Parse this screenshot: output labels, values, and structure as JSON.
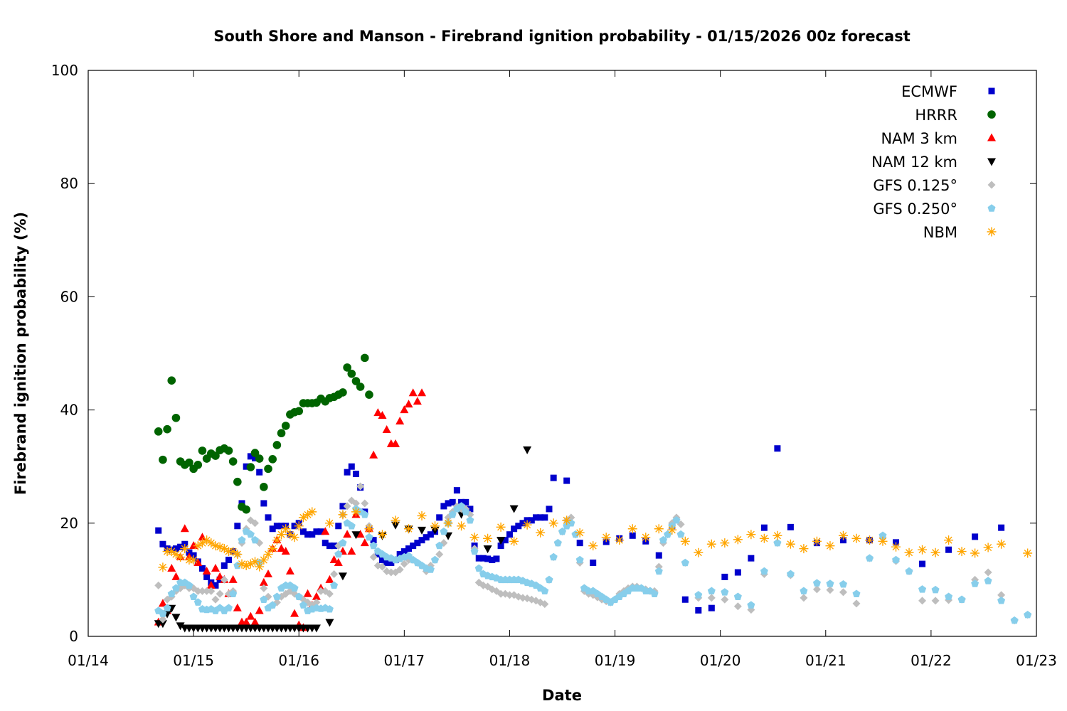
{
  "chart_data": {
    "type": "scatter",
    "title": "South Shore and Manson - Firebrand ignition probability - 01/15/2026 00z forecast",
    "xlabel": "Date",
    "ylabel": "Firebrand ignition probability (%)",
    "x_units": "hours since 01/14 00:00",
    "xlim": [
      0,
      216
    ],
    "ylim": [
      0,
      100
    ],
    "x_ticks": [
      0,
      24,
      48,
      72,
      96,
      120,
      144,
      168,
      192,
      216
    ],
    "x_tick_labels": [
      "01/14",
      "01/15",
      "01/16",
      "01/17",
      "01/18",
      "01/19",
      "01/20",
      "01/21",
      "01/22",
      "01/23"
    ],
    "y_ticks": [
      0,
      20,
      40,
      60,
      80,
      100
    ],
    "y_tick_labels": [
      "0",
      "20",
      "40",
      "60",
      "80",
      "100"
    ],
    "grid": false,
    "legend_position": "top-right",
    "series": [
      {
        "name": "ECMWF",
        "marker": "square",
        "color": "#0000cc",
        "segments": [
          {
            "start": 16,
            "step": 1,
            "values": [
              18.7,
              16.3,
              15.5,
              15.3,
              15.5,
              15.8,
              16.3,
              14.8,
              14.3,
              13.2,
              12,
              10.5,
              9.5,
              9,
              10,
              12.5,
              13.5,
              15,
              19.5,
              23.5,
              30,
              31.8,
              31.5,
              29,
              23.5,
              21,
              19,
              19.5,
              19.5,
              19.5,
              18,
              19.5,
              20,
              18.5,
              18,
              18,
              18.5,
              18.5,
              16.5,
              16,
              16,
              19.5,
              23,
              29,
              30,
              28.7,
              26.3,
              22,
              19,
              17,
              14.5,
              13.5,
              13,
              13,
              13.5,
              14.5,
              15,
              15.5,
              16,
              16.5,
              17,
              17.5,
              18,
              18.5,
              21,
              23,
              23.5,
              23.7,
              25.8,
              23.7,
              23.7,
              22.5,
              16,
              13.8,
              13.8,
              13.7,
              13.5,
              13.7,
              16,
              17,
              18,
              19,
              19.5,
              20,
              20.5,
              20.5,
              21,
              21,
              21,
              22.5,
              28
            ]
          },
          {
            "start": 109,
            "step": 3,
            "values": [
              27.5,
              16.5,
              13,
              16.7,
              17.3,
              17.8,
              16.8,
              14.3,
              19.5,
              6.5,
              4.6,
              5,
              10.5,
              11.3,
              13.8,
              19.2,
              33.2,
              19.3
            ]
          },
          {
            "start": 166,
            "step": 6,
            "values": [
              16.5,
              17,
              17,
              16.6,
              12.8,
              15.3,
              17.6,
              19.2
            ]
          }
        ]
      },
      {
        "name": "HRRR",
        "marker": "circle",
        "color": "#006400",
        "segments": [
          {
            "start": 16,
            "step": 1,
            "values": [
              36.2,
              31.2,
              36.6,
              45.2,
              38.6,
              30.9,
              30.3,
              30.7,
              29.6,
              30.3,
              32.8,
              31.4,
              32.3,
              31.9,
              32.9,
              33.2,
              32.8,
              30.9,
              27.3,
              22.9,
              22.4,
              29.9,
              32.4,
              31.4,
              26.4,
              29.6,
              31.3,
              33.8,
              35.9,
              37.2,
              39.2,
              39.6,
              39.8,
              41.2,
              41.2,
              41.2,
              41.3,
              42,
              41.5,
              42.1,
              42.3,
              42.7,
              43.1,
              47.5,
              46.4,
              45.1,
              44.1,
              49.2,
              42.7
            ]
          }
        ]
      },
      {
        "name": "NAM 3 km",
        "marker": "triangle-up",
        "color": "#ff0000",
        "segments": [
          {
            "start": 16,
            "step": 1,
            "values": [
              2.5,
              5.8,
              4.5,
              12,
              10.5,
              14,
              19,
              14,
              16,
              13,
              17.5,
              11.5,
              9,
              12,
              10.5,
              10,
              7.5,
              10,
              5,
              2.5,
              2.5,
              3.5,
              2.5,
              4.5,
              9.5,
              11,
              15.5,
              17,
              15.5,
              15,
              11.5,
              4,
              2,
              1.5,
              7.5,
              5.5,
              7,
              8.5,
              18.5,
              10,
              13.5,
              13,
              15,
              18,
              15,
              21.5,
              18,
              16.5,
              19,
              32,
              39.5,
              39,
              36.5,
              34,
              34,
              38,
              40,
              41,
              43,
              41.5,
              43
            ]
          }
        ]
      },
      {
        "name": "NAM 12 km",
        "marker": "triangle-down",
        "color": "#000000",
        "segments": [
          {
            "start": 16,
            "step": 1,
            "values": [
              2.3,
              2.3,
              4,
              5,
              3.4,
              1.9,
              1.5,
              1.5,
              1.5,
              1.5,
              1.5,
              1.5,
              1.5,
              1.5,
              1.5,
              1.5,
              1.5,
              1.5,
              1.5,
              1.5,
              1.5,
              1.5,
              1.5,
              1.5,
              1.5,
              1.5,
              1.5,
              1.5,
              1.5,
              1.5,
              1.5,
              1.5,
              1.5,
              1.5,
              1.5,
              1.5,
              1.5
            ]
          },
          {
            "start": 55,
            "step": 3,
            "values": [
              2.5,
              10.7,
              18
            ]
          },
          {
            "start": 67,
            "step": 3,
            "values": [
              17.8,
              19.7,
              19,
              18.8,
              18.8,
              17.8,
              21.6
            ]
          },
          {
            "start": 91,
            "step": 3,
            "values": [
              15.5,
              17,
              22.6,
              33
            ]
          }
        ]
      },
      {
        "name": "GFS 0.125°",
        "marker": "diamond",
        "color": "#bebebe",
        "segments": [
          {
            "start": 16,
            "step": 1,
            "values": [
              9,
              3,
              6.5,
              7,
              8,
              8.5,
              9,
              8.5,
              8.5,
              8,
              8,
              8,
              8,
              6.5,
              7.5,
              10,
              7.5,
              8,
              14.5,
              16.5,
              19,
              20.5,
              20,
              16.5,
              8.5,
              7,
              5.5,
              6,
              7,
              7.5,
              8,
              7.5,
              7,
              6.5,
              6,
              5.5,
              6,
              8,
              8,
              7.5,
              11,
              16,
              21.5,
              23,
              24,
              23.5,
              26.5,
              23.5,
              19.5,
              14,
              12.5,
              12.3,
              11.5,
              11.3,
              11.3,
              11.8,
              12.8,
              13.5,
              13.5,
              13,
              12.5,
              11.5,
              12.5,
              13.5,
              14.5,
              16.5,
              21,
              22,
              23,
              22.5,
              22.5,
              21.5,
              15.5,
              9.5,
              9,
              8.8,
              8.3,
              8,
              7.5,
              7.5,
              7.3,
              7.3,
              7,
              6.8,
              6.7,
              6.5,
              6.3,
              6,
              5.7,
              10,
              14,
              16.5,
              18.5,
              20.5,
              21,
              18,
              13,
              8,
              7.5,
              7.3,
              6.9,
              6.5,
              6.2,
              6,
              6.5,
              7.5,
              8,
              8.5,
              8.8,
              8.8,
              8.5,
              8.3,
              8,
              8,
              12.3,
              16.5,
              18,
              20,
              21,
              19.8,
              13
            ]
          },
          {
            "start": 139,
            "step": 3,
            "values": [
              6.8,
              6.8,
              6.5,
              5.3,
              4.7,
              11,
              16.5,
              10.8,
              6.8,
              8.3,
              8.2,
              7.8,
              5.8,
              13.8,
              17.5,
              13.3,
              11.5,
              6.3,
              6.3,
              6.4,
              6.5,
              10,
              11.3,
              7.3,
              2.8,
              3.8
            ]
          }
        ]
      },
      {
        "name": "GFS 0.250°",
        "marker": "pentagon",
        "color": "#87ceeb",
        "segments": [
          {
            "start": 16,
            "step": 1,
            "values": [
              4.5,
              4,
              5,
              7.5,
              8.5,
              9.5,
              9.5,
              9,
              7,
              6,
              4.8,
              4.7,
              4.8,
              4.5,
              5,
              4.5,
              5,
              7.5,
              12.5,
              17,
              18.5,
              18,
              17,
              13,
              6.5,
              5,
              5.5,
              7,
              8.5,
              9,
              9,
              8.5,
              7,
              5.5,
              4.5,
              4.8,
              5,
              4.9,
              5,
              4.8,
              9,
              14.5,
              16.5,
              20,
              19.5,
              22.5,
              22,
              21.5,
              17.5,
              16,
              15,
              14.5,
              14,
              13.8,
              13.5,
              13.7,
              14,
              14.2,
              13.5,
              13,
              12.5,
              12,
              11.8,
              13.5,
              16,
              18.5,
              20,
              21.5,
              22.5,
              23,
              22,
              20.5,
              15,
              12,
              11,
              10.7,
              10.5,
              10.3,
              10,
              10,
              10,
              10,
              10,
              9.8,
              9.5,
              9.3,
              9,
              8.5,
              8,
              10,
              14,
              16.5,
              18.5,
              19.5,
              20,
              18,
              13.5,
              8.5,
              8,
              8,
              7.5,
              7,
              6.5,
              6,
              6.5,
              7,
              7.5,
              8,
              8.5,
              8.5,
              8.5,
              8,
              8,
              7.5,
              11.5,
              17,
              18,
              19.5,
              20.5,
              18,
              13
            ]
          },
          {
            "start": 139,
            "step": 3,
            "values": [
              7.3,
              8,
              7.8,
              7,
              5.5,
              11.5,
              16.5,
              11,
              8,
              9.4,
              9.3,
              9.2,
              7.5,
              13.8,
              17.8,
              13.5,
              11.5,
              8.3,
              8.2,
              7,
              6.5,
              9.3,
              9.8,
              6.3,
              2.8,
              3.8
            ]
          }
        ]
      },
      {
        "name": "NBM",
        "marker": "asterisk",
        "color": "#ffa500",
        "segments": [
          {
            "start": 17,
            "step": 1,
            "values": [
              12.2,
              15,
              15,
              14.5,
              14,
              15.5,
              13.5,
              13.5,
              16,
              16.5,
              17,
              16.5,
              16,
              15.8,
              15.5,
              15,
              15,
              14.5,
              12.8,
              12.5,
              12.8,
              13.2,
              12.3,
              13.5,
              14.5,
              15.5,
              17,
              18,
              19,
              18,
              17.5,
              19.5,
              21,
              21.5,
              22
            ]
          },
          {
            "start": 55,
            "step": 3,
            "values": [
              20,
              21.5,
              22,
              19,
              18,
              20.5,
              19,
              21.3,
              19.5,
              20,
              19.5,
              17.5,
              17.3,
              19.3,
              16.8,
              19.7,
              18.3,
              20,
              20.5,
              18.3,
              16,
              17.5,
              17,
              19,
              17.5,
              19,
              18.8,
              16.8,
              14.8,
              16.3,
              16.5,
              17.1,
              18,
              17.3,
              17.8,
              16.3,
              15.5,
              16.8,
              16,
              17.8,
              17.3,
              17,
              16.8,
              15.8,
              14.8,
              15.3,
              14.8,
              17,
              15,
              14.7,
              15.7,
              16.3
            ]
          },
          {
            "start": 214,
            "step": 1,
            "values": [
              14.7
            ]
          }
        ]
      }
    ]
  }
}
